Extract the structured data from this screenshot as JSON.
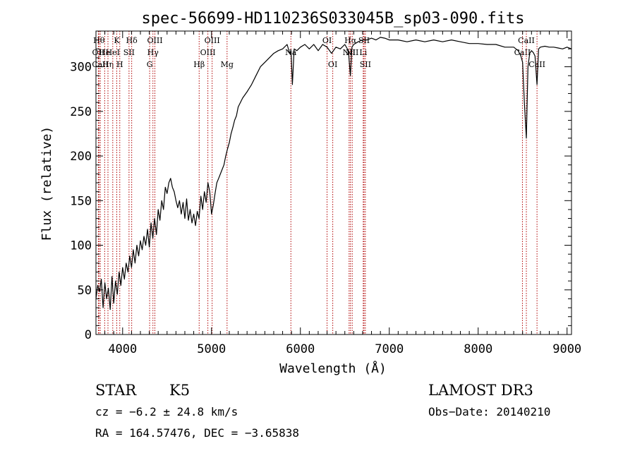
{
  "chart_data": {
    "type": "line",
    "title": "spec-56699-HD110236S033045B_sp03-090.fits",
    "xlabel": "Wavelength (Å)",
    "ylabel": "Flux (relative)",
    "xlim": [
      3700,
      9050
    ],
    "ylim": [
      0,
      340
    ],
    "x_ticks": [
      4000,
      5000,
      6000,
      7000,
      8000,
      9000
    ],
    "y_ticks": [
      0,
      50,
      100,
      150,
      200,
      250,
      300
    ],
    "x_tick_labels": [
      "4000",
      "5000",
      "6000",
      "7000",
      "8000",
      "9000"
    ],
    "y_tick_labels": [
      "0",
      "50",
      "100",
      "150",
      "200",
      "250",
      "300"
    ],
    "series": [
      {
        "name": "flux",
        "x": [
          3700,
          3720,
          3740,
          3760,
          3780,
          3800,
          3820,
          3840,
          3860,
          3880,
          3900,
          3920,
          3940,
          3960,
          3980,
          4000,
          4020,
          4040,
          4060,
          4080,
          4100,
          4120,
          4140,
          4160,
          4180,
          4200,
          4220,
          4240,
          4260,
          4280,
          4300,
          4320,
          4340,
          4360,
          4380,
          4400,
          4420,
          4440,
          4460,
          4480,
          4500,
          4520,
          4540,
          4560,
          4580,
          4600,
          4620,
          4640,
          4660,
          4680,
          4700,
          4720,
          4740,
          4760,
          4780,
          4800,
          4820,
          4840,
          4860,
          4880,
          4900,
          4920,
          4940,
          4960,
          4980,
          5000,
          5020,
          5040,
          5060,
          5080,
          5100,
          5120,
          5140,
          5160,
          5180,
          5200,
          5220,
          5240,
          5260,
          5280,
          5300,
          5350,
          5400,
          5450,
          5500,
          5550,
          5600,
          5650,
          5700,
          5750,
          5800,
          5850,
          5880,
          5895,
          5910,
          5930,
          5960,
          6000,
          6050,
          6100,
          6150,
          6200,
          6250,
          6300,
          6350,
          6400,
          6450,
          6500,
          6540,
          6562,
          6580,
          6600,
          6650,
          6700,
          6750,
          6800,
          6850,
          6900,
          6950,
          7000,
          7100,
          7200,
          7300,
          7400,
          7500,
          7600,
          7700,
          7800,
          7900,
          8000,
          8100,
          8200,
          8300,
          8400,
          8450,
          8480,
          8500,
          8520,
          8542,
          8560,
          8580,
          8600,
          8620,
          8640,
          8662,
          8680,
          8700,
          8750,
          8800,
          8850,
          8900,
          8950,
          9000,
          9050
        ],
        "y": [
          40,
          55,
          48,
          62,
          30,
          58,
          40,
          52,
          28,
          65,
          35,
          60,
          45,
          70,
          55,
          75,
          62,
          80,
          70,
          88,
          75,
          95,
          80,
          100,
          88,
          105,
          95,
          110,
          100,
          118,
          98,
          125,
          108,
          130,
          112,
          140,
          128,
          150,
          140,
          165,
          158,
          170,
          175,
          165,
          160,
          150,
          142,
          150,
          135,
          148,
          130,
          152,
          128,
          140,
          125,
          135,
          122,
          138,
          130,
          155,
          140,
          160,
          148,
          170,
          160,
          135,
          145,
          158,
          170,
          175,
          180,
          185,
          190,
          200,
          208,
          215,
          225,
          232,
          240,
          245,
          255,
          265,
          272,
          280,
          290,
          300,
          305,
          310,
          315,
          318,
          320,
          325,
          315,
          318,
          280,
          320,
          318,
          322,
          325,
          320,
          325,
          318,
          325,
          322,
          315,
          322,
          320,
          325,
          318,
          290,
          322,
          325,
          328,
          330,
          330,
          332,
          330,
          333,
          332,
          330,
          330,
          328,
          330,
          328,
          330,
          328,
          330,
          328,
          326,
          326,
          325,
          325,
          322,
          322,
          318,
          312,
          305,
          260,
          220,
          300,
          315,
          318,
          316,
          312,
          280,
          320,
          322,
          323,
          322,
          322,
          321,
          320,
          322,
          320
        ]
      }
    ],
    "line_markers": [
      {
        "wavelength": 3734,
        "label": "Hθ",
        "row": 1
      },
      {
        "wavelength": 3727,
        "label": "OII",
        "row": 2
      },
      {
        "wavelength": 3749,
        "label": "CaII",
        "row": 3
      },
      {
        "wavelength": 3798,
        "label": "He",
        "row": 2
      },
      {
        "wavelength": 3835,
        "label": "Hη",
        "row": 3
      },
      {
        "wavelength": 3889,
        "label": "HeI",
        "row": 2
      },
      {
        "wavelength": 3934,
        "label": "K",
        "row": 1
      },
      {
        "wavelength": 3968,
        "label": "H",
        "row": 3
      },
      {
        "wavelength": 4072,
        "label": "SII",
        "row": 2
      },
      {
        "wavelength": 4102,
        "label": "Hδ",
        "row": 1
      },
      {
        "wavelength": 4304,
        "label": "G",
        "row": 3
      },
      {
        "wavelength": 4341,
        "label": "Hγ",
        "row": 2
      },
      {
        "wavelength": 4363,
        "label": "OIII",
        "row": 1
      },
      {
        "wavelength": 4861,
        "label": "Hβ",
        "row": 3
      },
      {
        "wavelength": 4959,
        "label": "OIII",
        "row": 2
      },
      {
        "wavelength": 5007,
        "label": "OIII",
        "row": 1
      },
      {
        "wavelength": 5175,
        "label": "Mg",
        "row": 3
      },
      {
        "wavelength": 5893,
        "label": "Na",
        "row": 2
      },
      {
        "wavelength": 6300,
        "label": "OI",
        "row": 1
      },
      {
        "wavelength": 6364,
        "label": "OI",
        "row": 3
      },
      {
        "wavelength": 6548,
        "label": "NII",
        "row": 2
      },
      {
        "wavelength": 6563,
        "label": "Hα",
        "row": 1
      },
      {
        "wavelength": 6583,
        "label": "NII",
        "row": 2
      },
      {
        "wavelength": 6707,
        "label": "Li",
        "row": 2
      },
      {
        "wavelength": 6716,
        "label": "SII",
        "row": 1
      },
      {
        "wavelength": 6731,
        "label": "SII",
        "row": 3
      },
      {
        "wavelength": 8498,
        "label": "CaII",
        "row": 2
      },
      {
        "wavelength": 8542,
        "label": "CaII",
        "row": 1
      },
      {
        "wavelength": 8662,
        "label": "CaII",
        "row": 3
      }
    ]
  },
  "info": {
    "object_class": "STAR",
    "subclass": "K5",
    "survey": "LAMOST DR3",
    "redshift": "cz = −6.2 ± 24.8 km/s",
    "obs_date": "Obs−Date: 20140210",
    "coords": "RA = 164.57476, DEC =  −3.65838"
  }
}
